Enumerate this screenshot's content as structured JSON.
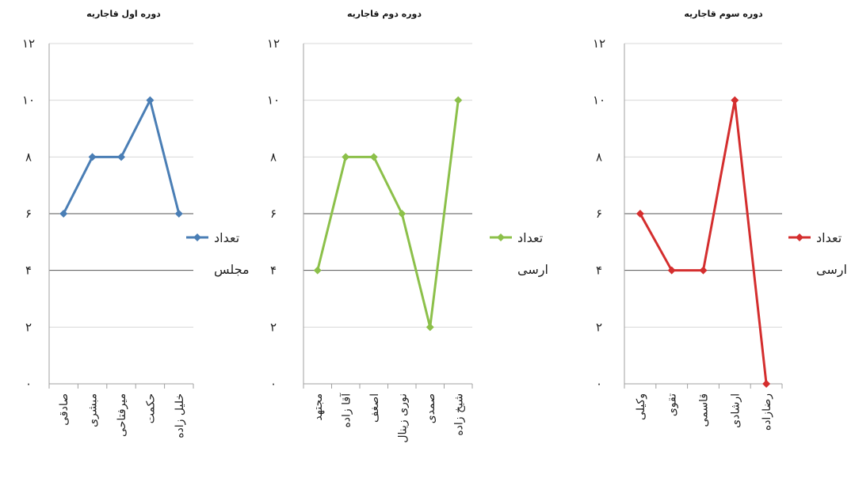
{
  "chart_data": [
    {
      "type": "line",
      "title": "دوره اول قاجاریه",
      "categories": [
        "صادقی",
        "مبشری",
        "میرفتاحی",
        "حکمت",
        "خلیل زاده"
      ],
      "series": [
        {
          "name": "تعداد مجلس",
          "values": [
            6,
            8,
            8,
            10,
            6
          ],
          "color": "#4a7eb5"
        }
      ],
      "yticks": [
        "۰",
        "۲",
        "۴",
        "۶",
        "۸",
        "۱۰",
        "۱۲"
      ],
      "ylim": [
        0,
        12
      ],
      "grid": true,
      "legend": "right"
    },
    {
      "type": "line",
      "title": "دوره دوم قاجاریه",
      "categories": [
        "مجتهد",
        "آقا زاده",
        "اصغف",
        "نوری زینال",
        "صمدی",
        "شیخ زاده"
      ],
      "series": [
        {
          "name": "تعداد ارسی",
          "values": [
            4,
            8,
            8,
            6,
            2,
            10
          ],
          "color": "#8cc04a"
        }
      ],
      "yticks": [
        "۰",
        "۲",
        "۴",
        "۶",
        "۸",
        "۱۰",
        "۱۲"
      ],
      "ylim": [
        0,
        12
      ],
      "grid": true,
      "legend": "right"
    },
    {
      "type": "line",
      "title": "دوره سوم قاجاریه",
      "categories": [
        "وکیلی",
        "تقوی",
        "قاسمی",
        "ارشادی",
        "رضازاده"
      ],
      "series": [
        {
          "name": "تعداد ارسی",
          "values": [
            6,
            4,
            4,
            10,
            0
          ],
          "color": "#d42e2e"
        }
      ],
      "yticks": [
        "۰",
        "۲",
        "۴",
        "۶",
        "۸",
        "۱۰",
        "۱۲"
      ],
      "ylim": [
        0,
        12
      ],
      "grid": true,
      "legend": "right"
    }
  ]
}
